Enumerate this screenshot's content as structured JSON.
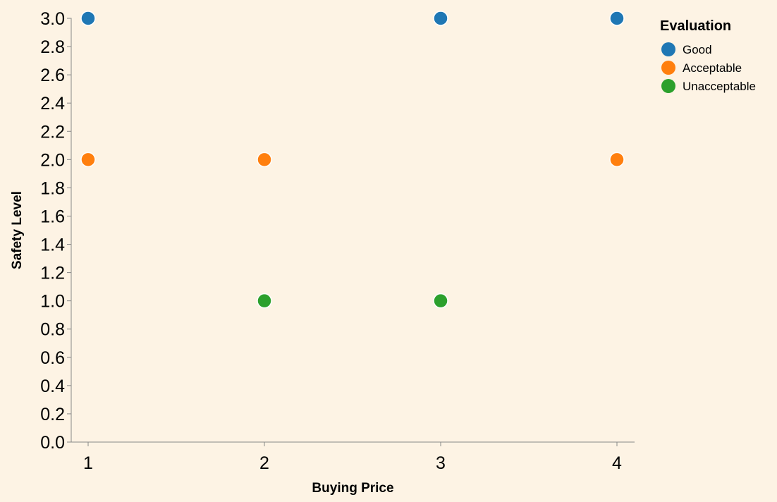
{
  "chart_data": {
    "type": "scatter",
    "xlabel": "Buying Price",
    "ylabel": "Safety Level",
    "xlim": [
      0.9,
      4.1
    ],
    "ylim": [
      0,
      3
    ],
    "x_ticks": [
      1,
      2,
      3,
      4
    ],
    "y_ticks": [
      0,
      0.2,
      0.4,
      0.6,
      0.8,
      1,
      1.2,
      1.4,
      1.6,
      1.8,
      2,
      2.2,
      2.4,
      2.6,
      2.8,
      3
    ],
    "grid": false,
    "legend": {
      "title": "Evaluation",
      "placement": "right"
    },
    "series": [
      {
        "name": "Good",
        "color": "#1f77b4",
        "points": [
          {
            "x": 1,
            "y": 3
          },
          {
            "x": 3,
            "y": 3
          },
          {
            "x": 4,
            "y": 3
          }
        ]
      },
      {
        "name": "Acceptable",
        "color": "#ff7f0e",
        "points": [
          {
            "x": 1,
            "y": 2
          },
          {
            "x": 2,
            "y": 2
          },
          {
            "x": 4,
            "y": 2
          }
        ]
      },
      {
        "name": "Unacceptable",
        "color": "#2ca02c",
        "points": [
          {
            "x": 2,
            "y": 1
          },
          {
            "x": 3,
            "y": 1
          }
        ]
      }
    ]
  }
}
